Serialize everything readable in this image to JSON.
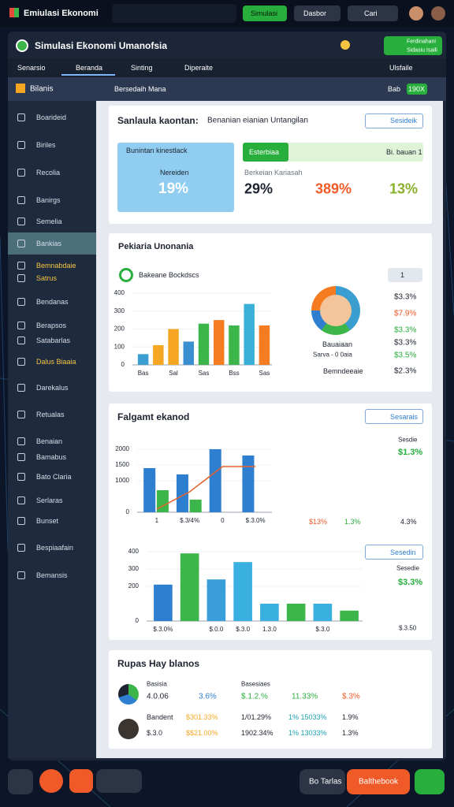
{
  "topbar": {
    "app_name": "Emiulasi Ekonomi",
    "simulate_button": "Simulasi",
    "dashboard_menu": "Dasbor",
    "search_button": "Cari"
  },
  "window": {
    "title": "Simulasi Ekonomi Umanofsia",
    "user": {
      "name": "Ferdinahani",
      "role": "Sidasiu Isaili"
    }
  },
  "tabs": [
    "Senarsio",
    "Beranda",
    "Sinting",
    "Diperaite"
  ],
  "tabs_right": "Ulsfaile",
  "toolbar": {
    "section": "Bilanis",
    "breadcrumb": "Bersedaih Mana",
    "label": "Bab",
    "badge": "190X"
  },
  "sidebar": [
    "Boarideid",
    "Biriles",
    "Recolia",
    "Banirgs",
    "Semelia",
    "Bankias",
    "Bemnabdaie",
    "Satrus",
    "Bendanas",
    "Berapsos",
    "Satabarlas",
    "Dalus Biaaia",
    "Darekalus",
    "Retualas",
    "Benaian",
    "Bamabus",
    "Bato Claria",
    "Serlaras",
    "Bunset",
    "Bespiaafain",
    "Bemansis"
  ],
  "card1": {
    "title": "Sanlaula kaontan:",
    "subtitle": "Benanian eianian Untangilan",
    "button": "Sesideik",
    "highlight": {
      "heading": "Bunintan kinestlack",
      "label": "Nereiden",
      "value": "19%"
    },
    "tag": "Esterbiaa",
    "tag_note": "Bi. bauan 1",
    "metrics_label": "Berkeian Kariasah",
    "metrics": [
      "29%",
      "389%",
      "13%"
    ]
  },
  "card2": {
    "title": "Pekiaria Unonania",
    "legend": "Bakeane Bockdscs",
    "select": "1",
    "profile": {
      "name": "Bauaiaan",
      "sub": "Sarva - 0 0aia",
      "tag": "Bemndeeaie"
    },
    "stats": [
      "$3.3%",
      "$7.9%",
      "$3.3%",
      "$3.3%",
      "$3.5%",
      "$2.3%"
    ]
  },
  "card3": {
    "title": "Falgamt ekanod",
    "button": "Sesarais",
    "side_label": "Sesdie",
    "side_value": "$1.3%",
    "footer": [
      "$13%",
      "1.3%",
      "4.3%"
    ],
    "button2": "Sesedin",
    "side_label2": "Sesedie",
    "side_value2": "$3.3%",
    "footer2": "$.3.50"
  },
  "card4": {
    "title": "Rupas Hay blanos",
    "headers": [
      "Basisia",
      "Basesiaes"
    ],
    "row1": [
      "4.0.06",
      "3.6%",
      "$.1.2.%",
      "11.33%",
      "$.3%"
    ],
    "row2_label": "Bandent",
    "row2": [
      "$301.33%",
      "1/01.29%",
      "1% 15033%",
      "1.9%"
    ],
    "row3": [
      "$.3.0",
      "$$21.00%",
      "1902.34%",
      "1% 13033%",
      "1.3%"
    ]
  },
  "dock": {
    "link": "Bo Tarlas",
    "action": "Balthebook"
  },
  "chart_data": [
    {
      "type": "bar",
      "categories": [
        "Bas",
        null,
        "Sal",
        null,
        "Sas",
        null,
        "Bss",
        null,
        "Sas"
      ],
      "values": [
        60,
        110,
        200,
        130,
        230,
        250,
        220,
        340,
        220
      ],
      "colors": [
        "#3a9fd0",
        "#f5a623",
        "#f5a623",
        "#3a8fd0",
        "#3cb54a",
        "#f57c20",
        "#3cb54a",
        "#3ab0d8",
        "#f57c20"
      ],
      "ylim": [
        0,
        400
      ],
      "yticks": [
        0,
        100,
        200,
        300,
        400
      ]
    },
    {
      "type": "bar",
      "categories": [
        "1",
        "$.3/4%",
        "0",
        "$.3.0%"
      ],
      "series": [
        {
          "color": "#2f7fd0",
          "values": [
            1400,
            1200,
            2000,
            1800
          ]
        },
        {
          "color": "#3cb54a",
          "values": [
            700,
            400,
            null,
            null
          ]
        },
        {
          "color": "#e8622a",
          "type": "line",
          "values": [
            100,
            650,
            1450,
            1450
          ]
        }
      ],
      "ylim": [
        0,
        2000
      ],
      "yticks": [
        0,
        1000,
        1500,
        2000
      ]
    },
    {
      "type": "bar",
      "categories": [
        "$.3.0%",
        null,
        "$.0.0",
        "$.3.0",
        "1.3.0",
        null,
        "$.3.0",
        null
      ],
      "values": [
        210,
        390,
        240,
        340,
        100,
        100,
        100,
        60
      ],
      "colors": [
        "#2f7fd0",
        "#3cb54a",
        "#3a9fd8",
        "#3ab0e0",
        "#3ab0e0",
        "#3cb54a",
        "#3ab0e0",
        "#3cb54a"
      ],
      "ylim": [
        0,
        400
      ],
      "yticks": [
        0,
        200,
        300,
        400
      ]
    }
  ]
}
